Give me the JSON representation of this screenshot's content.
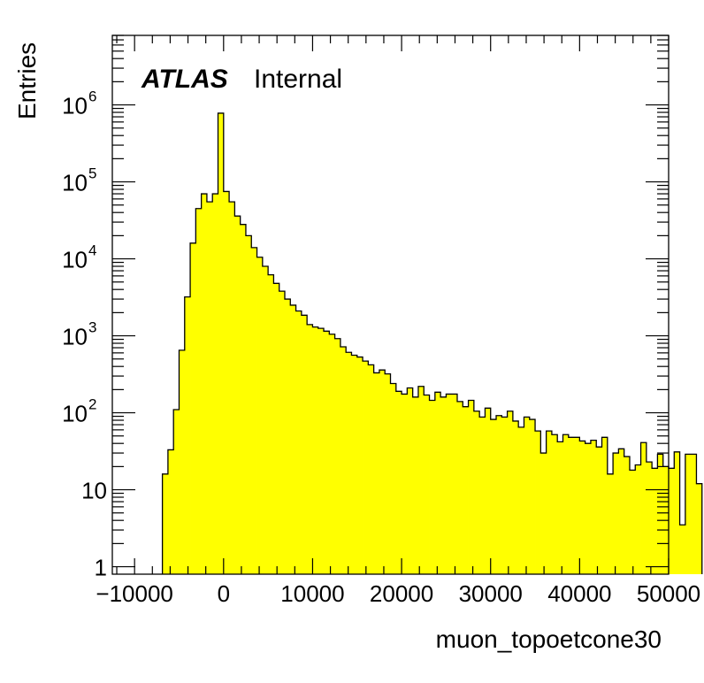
{
  "chart_data": {
    "type": "bar",
    "title": "",
    "xlabel": "muon_topoetcone30",
    "ylabel": "Entries",
    "xlim": [
      -12500,
      50000
    ],
    "ylim": [
      0.8,
      8000000
    ],
    "yscale": "log",
    "fill_color": "#ffff00",
    "line_color": "#000000",
    "annotation": {
      "atlas": "ATLAS",
      "label": "Internal"
    },
    "x_ticks": [
      {
        "value": -10000,
        "label": "−10000"
      },
      {
        "value": 0,
        "label": "0"
      },
      {
        "value": 10000,
        "label": "10000"
      },
      {
        "value": 20000,
        "label": "20000"
      },
      {
        "value": 30000,
        "label": "30000"
      },
      {
        "value": 40000,
        "label": "40000"
      },
      {
        "value": 50000,
        "label": "50000"
      }
    ],
    "y_ticks": [
      {
        "value": 1,
        "label": "1",
        "exp": ""
      },
      {
        "value": 10,
        "label": "10",
        "exp": ""
      },
      {
        "value": 100,
        "label": "10",
        "exp": "2"
      },
      {
        "value": 1000,
        "label": "10",
        "exp": "3"
      },
      {
        "value": 10000,
        "label": "10",
        "exp": "4"
      },
      {
        "value": 100000,
        "label": "10",
        "exp": "5"
      },
      {
        "value": 1000000,
        "label": "10",
        "exp": "6"
      }
    ],
    "bin_start": -6875,
    "bin_width": 625,
    "values": [
      16,
      33,
      110,
      650,
      3200,
      16000,
      45000,
      70000,
      55000,
      70000,
      780000,
      75000,
      55000,
      36000,
      28000,
      20000,
      14000,
      10500,
      8000,
      6200,
      4800,
      3800,
      3000,
      2500,
      2100,
      1850,
      1400,
      1300,
      1250,
      1150,
      1050,
      920,
      720,
      610,
      560,
      530,
      470,
      420,
      330,
      360,
      320,
      240,
      190,
      175,
      210,
      160,
      220,
      170,
      145,
      185,
      160,
      175,
      175,
      140,
      120,
      145,
      105,
      88,
      115,
      82,
      92,
      88,
      105,
      78,
      65,
      88,
      82,
      58,
      30,
      58,
      52,
      42,
      52,
      48,
      48,
      43,
      40,
      44,
      36,
      48,
      16,
      30,
      34,
      27,
      18,
      21,
      41,
      23,
      19,
      29,
      20,
      19,
      31,
      3.5,
      29,
      29,
      12
    ]
  }
}
